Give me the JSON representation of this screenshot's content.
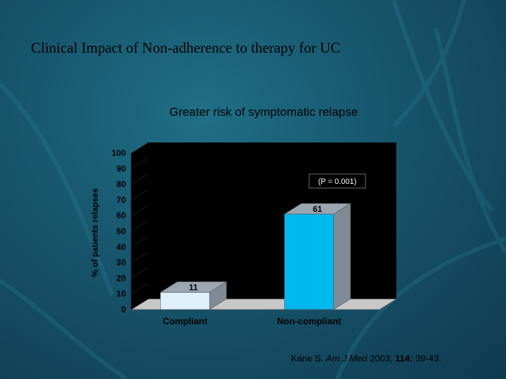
{
  "slide": {
    "title": "Clinical Impact of Non-adherence to therapy for UC",
    "citation_author": "Kane S. ",
    "citation_journal": "Am J Med",
    "citation_year": " 2003; ",
    "citation_volume": "114:",
    "citation_pages": " 39-43."
  },
  "colors": {
    "background": "#17546b",
    "plot_wall": "#000000",
    "floor": "#c8c8c8",
    "compliant_bar": "#dff0fb",
    "noncompliant_bar": "#00b8f0"
  },
  "chart_data": {
    "type": "bar",
    "title": "Greater risk of symptomatic relapse",
    "ylabel": "% of patients relapses",
    "xlabel": "",
    "categories": [
      "Compliant",
      "Non-compliant"
    ],
    "values": [
      11,
      61
    ],
    "data_labels": [
      "11",
      "61"
    ],
    "yticks": [
      "0",
      "10",
      "20",
      "30",
      "40",
      "50",
      "60",
      "70",
      "80",
      "90",
      "100"
    ],
    "ylim": [
      0,
      100
    ],
    "annotation": "(P = 0.001)",
    "grid": false,
    "legend": "none",
    "style": "3d"
  }
}
